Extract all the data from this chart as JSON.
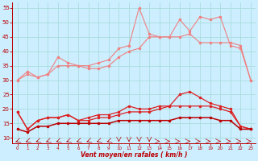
{
  "x": [
    0,
    1,
    2,
    3,
    4,
    5,
    6,
    7,
    8,
    9,
    10,
    11,
    12,
    13,
    14,
    15,
    16,
    17,
    18,
    19,
    20,
    21,
    22,
    23
  ],
  "line1_top": [
    30,
    33,
    31,
    32,
    38,
    36,
    35,
    35,
    36,
    37,
    41,
    42,
    55,
    46,
    45,
    45,
    51,
    47,
    52,
    51,
    52,
    42,
    41,
    30
  ],
  "line2_top": [
    30,
    32,
    31,
    32,
    35,
    35,
    35,
    34,
    34,
    35,
    38,
    40,
    41,
    45,
    45,
    45,
    45,
    46,
    43,
    43,
    43,
    43,
    42,
    30
  ],
  "line3_mid": [
    19,
    13,
    16,
    17,
    17,
    18,
    16,
    17,
    18,
    18,
    19,
    21,
    20,
    20,
    21,
    21,
    25,
    26,
    24,
    22,
    21,
    20,
    14,
    13
  ],
  "line4_mid": [
    19,
    13,
    16,
    17,
    17,
    18,
    16,
    16,
    17,
    17,
    18,
    19,
    19,
    19,
    20,
    21,
    21,
    21,
    21,
    21,
    20,
    19,
    14,
    13
  ],
  "line5_bot": [
    13,
    12,
    14,
    14,
    15,
    15,
    15,
    15,
    15,
    15,
    16,
    16,
    16,
    16,
    16,
    16,
    17,
    17,
    17,
    17,
    16,
    16,
    13,
    13
  ],
  "color_light": "#f08080",
  "color_mid": "#dd2020",
  "color_dark": "#bb0000",
  "bg_color": "#cceeff",
  "grid_color": "#aadddd",
  "xlabel": "Vent moyen/en rafales ( km/h )",
  "xlim": [
    -0.5,
    23.5
  ],
  "ylim": [
    8,
    57
  ],
  "yticks": [
    10,
    15,
    20,
    25,
    30,
    35,
    40,
    45,
    50,
    55
  ],
  "xticks": [
    0,
    1,
    2,
    3,
    4,
    5,
    6,
    7,
    8,
    9,
    10,
    11,
    12,
    13,
    14,
    15,
    16,
    17,
    18,
    19,
    20,
    21,
    22,
    23
  ]
}
